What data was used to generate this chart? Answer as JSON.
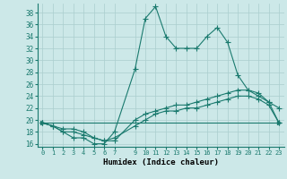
{
  "xlabel": "Humidex (Indice chaleur)",
  "background_color": "#cce8e8",
  "line_color": "#1a7a6e",
  "grid_color": "#aacece",
  "xlim": [
    -0.5,
    23.5
  ],
  "ylim": [
    15.5,
    39.5
  ],
  "xticks": [
    0,
    1,
    2,
    3,
    4,
    5,
    6,
    7,
    9,
    10,
    11,
    12,
    13,
    14,
    15,
    16,
    17,
    18,
    19,
    20,
    21,
    22,
    23
  ],
  "yticks": [
    16,
    18,
    20,
    22,
    24,
    26,
    28,
    30,
    32,
    34,
    36,
    38
  ],
  "series1_x": [
    0,
    1,
    2,
    3,
    4,
    5,
    6,
    7,
    9,
    10,
    11,
    12,
    13,
    14,
    15,
    16,
    17,
    18,
    19,
    20,
    21,
    22,
    23
  ],
  "series1_y": [
    19.5,
    19.0,
    18.0,
    17.0,
    17.0,
    16.0,
    16.0,
    18.0,
    28.5,
    37.0,
    39.0,
    34.0,
    32.0,
    32.0,
    32.0,
    34.0,
    35.5,
    33.0,
    27.5,
    25.0,
    24.0,
    23.0,
    22.0
  ],
  "series2_x": [
    0,
    1,
    2,
    3,
    4,
    5,
    6,
    7,
    9,
    10,
    11,
    12,
    13,
    14,
    15,
    16,
    17,
    18,
    19,
    20,
    21,
    22,
    23
  ],
  "series2_y": [
    19.5,
    19.0,
    18.5,
    18.5,
    18.0,
    17.0,
    16.5,
    16.5,
    20.0,
    21.0,
    21.5,
    22.0,
    22.5,
    22.5,
    23.0,
    23.5,
    24.0,
    24.5,
    25.0,
    25.0,
    24.5,
    23.0,
    19.5
  ],
  "series3_x": [
    0,
    23
  ],
  "series3_y": [
    19.5,
    19.5
  ],
  "series4_x": [
    0,
    1,
    2,
    3,
    4,
    5,
    6,
    7,
    9,
    10,
    11,
    12,
    13,
    14,
    15,
    16,
    17,
    18,
    19,
    20,
    21,
    22,
    23
  ],
  "series4_y": [
    19.5,
    19.0,
    18.0,
    18.0,
    17.5,
    17.0,
    16.5,
    17.0,
    19.0,
    20.0,
    21.0,
    21.5,
    21.5,
    22.0,
    22.0,
    22.5,
    23.0,
    23.5,
    24.0,
    24.0,
    23.5,
    22.5,
    19.5
  ]
}
